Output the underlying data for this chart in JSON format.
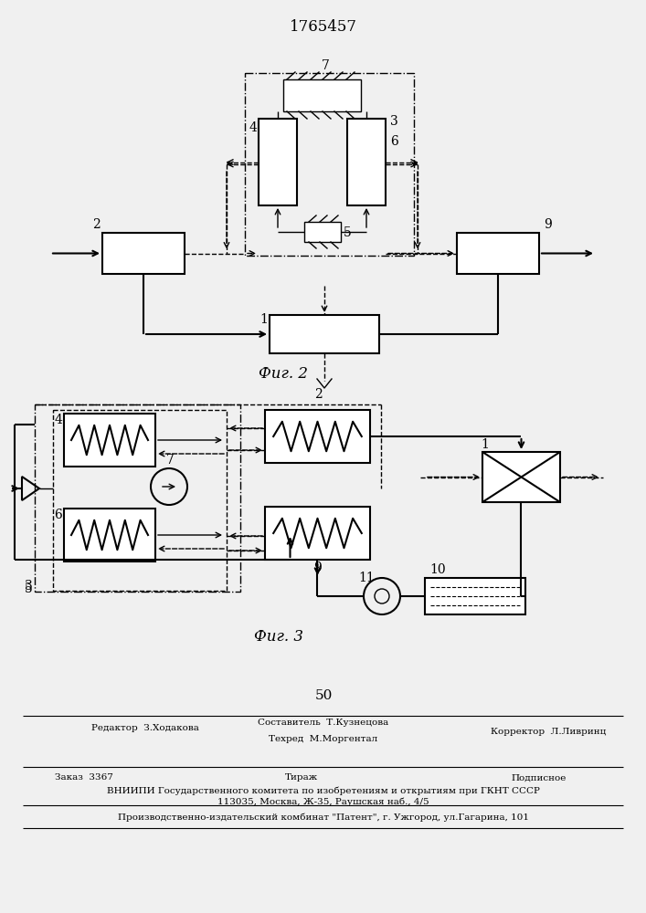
{
  "title": "1765457",
  "fig2_label": "Фиг. 2",
  "fig3_label": "Фиг. 3",
  "page_number": "50",
  "footer_line1_left": "Редактор  З.Ходакова",
  "footer_line1_center": "Составитель  Т.Кузнецова",
  "footer_line2_center": "Техред  М.Моргентал",
  "footer_line2_right": "Корректор  Л.Ливринц",
  "footer_line3_left": "Заказ  3367",
  "footer_line3_center": "Тираж",
  "footer_line3_right": "Подписное",
  "footer_line4": "ВНИИПИ Государственного комитета по изобретениям и открытиям при ГКНТ СССР",
  "footer_line5": "113035, Москва, Ж-35, Раушская наб., 4/5",
  "footer_line6": "Производственно-издательский комбинат \"Патент\", г. Ужгород, ул.Гагарина, 101",
  "bg_color": "#f0f0f0"
}
